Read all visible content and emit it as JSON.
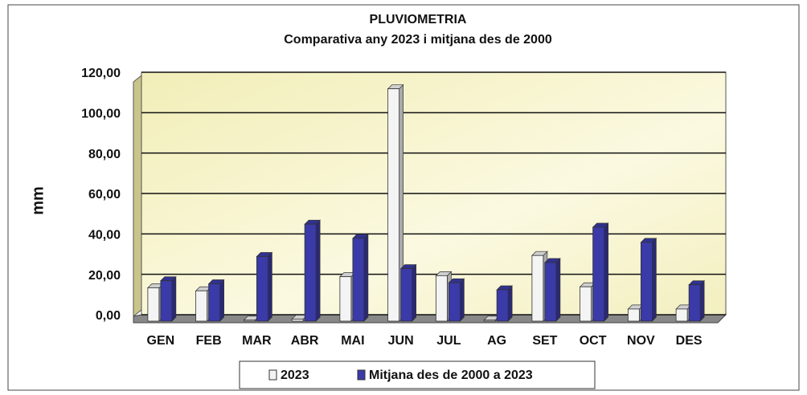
{
  "chart_data": {
    "type": "bar3d",
    "title": "PLUVIOMETRIA",
    "subtitle": "Comparativa any 2023 i mitjana des de 2000",
    "y_label": "mm",
    "categories": [
      "GEN",
      "FEB",
      "MAR",
      "ABR",
      "MAI",
      "JUN",
      "JUL",
      "AG",
      "SET",
      "OCT",
      "NOV",
      "DES"
    ],
    "series": [
      {
        "name": "2023",
        "color": "#f4f4f4",
        "values": [
          16.5,
          15,
          0.5,
          1,
          22,
          115,
          22.5,
          0.5,
          32.5,
          17,
          6,
          6
        ]
      },
      {
        "name": "Mitjana des de 2000 a 2023",
        "color": "#3a3aa8",
        "values": [
          20,
          18.5,
          32,
          48,
          41,
          26,
          19,
          15.5,
          29,
          46.5,
          39,
          18
        ]
      }
    ],
    "ylim": [
      0,
      120
    ],
    "yticks": [
      {
        "value": 0,
        "label": "0,00"
      },
      {
        "value": 20,
        "label": "20,00"
      },
      {
        "value": 40,
        "label": "40,00"
      },
      {
        "value": 60,
        "label": "60,00"
      },
      {
        "value": 80,
        "label": "80,00"
      },
      {
        "value": 100,
        "label": "100,00"
      },
      {
        "value": 120,
        "label": "120,00"
      }
    ],
    "grid": true
  }
}
